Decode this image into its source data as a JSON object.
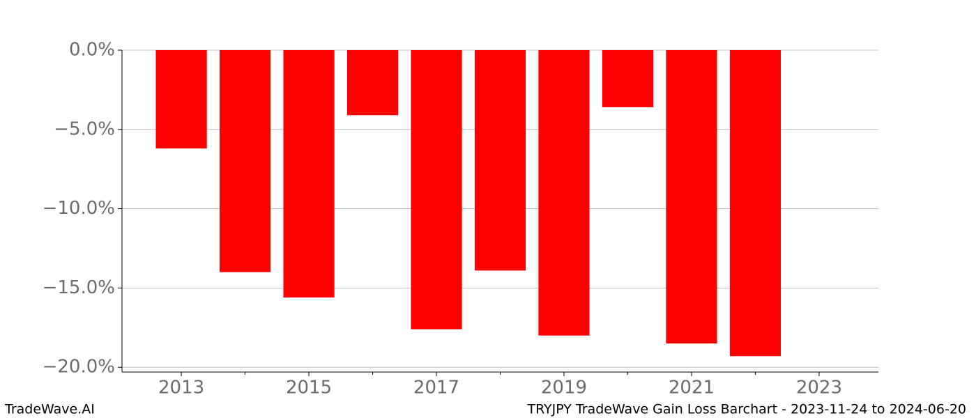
{
  "chart_data": {
    "type": "bar",
    "x": [
      2013,
      2014,
      2015,
      2016,
      2017,
      2018,
      2019,
      2020,
      2021,
      2022
    ],
    "values": [
      -6.2,
      -14.0,
      -15.6,
      -4.1,
      -17.6,
      -13.9,
      -18.0,
      -3.6,
      -18.5,
      -19.3
    ],
    "color": "#ff0000",
    "xlim": [
      2012.07,
      2023.93
    ],
    "xticks": [
      2013,
      2015,
      2017,
      2019,
      2021,
      2023
    ],
    "xticks_minor": [
      2014,
      2016,
      2018,
      2020,
      2022
    ],
    "ylim": [
      -20.3,
      0
    ],
    "yticks": [
      {
        "value": 0,
        "label": "0.0%"
      },
      {
        "value": -5,
        "label": "−5.0%"
      },
      {
        "value": -10,
        "label": "−10.0%"
      },
      {
        "value": -15,
        "label": "−15.0%"
      },
      {
        "value": -20,
        "label": "−20.0%"
      }
    ],
    "grid": true,
    "watermark": "TradeWave.AI",
    "title": "TRYJPY TradeWave Gain Loss Barchart - 2023-11-24 to 2024-06-20"
  }
}
